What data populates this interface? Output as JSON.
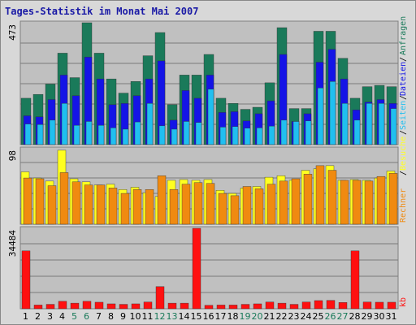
{
  "title": "Tages-Statistik im Monat Mai 2007",
  "colors": {
    "besuche": "#1a7a5a",
    "seiten": "#1414e6",
    "dateien": "#20bff0",
    "rechner": "#f08a10",
    "besuche2": "#ffff20",
    "kb": "#ff1010",
    "weekend_label": "#1a7a5a"
  },
  "chart_data": [
    {
      "type": "bar",
      "name_panel": "top",
      "ymax_label": "473",
      "ymax": 473,
      "side_labels": [
        "Anfragen",
        "Dateien",
        "Seiten",
        "Besuche"
      ],
      "categories": [
        "1",
        "2",
        "3",
        "4",
        "5",
        "6",
        "7",
        "8",
        "9",
        "10",
        "11",
        "12",
        "13",
        "14",
        "15",
        "16",
        "17",
        "18",
        "19",
        "20",
        "21",
        "22",
        "23",
        "24",
        "25",
        "26",
        "27",
        "28",
        "29",
        "30",
        "31"
      ],
      "series": [
        {
          "name": "Anfragen",
          "values": [
            180,
            195,
            235,
            355,
            260,
            473,
            355,
            255,
            200,
            245,
            345,
            435,
            155,
            270,
            270,
            350,
            180,
            160,
            137,
            145,
            240,
            454,
            140,
            140,
            440,
            440,
            335,
            180,
            225,
            230,
            225
          ]
        },
        {
          "name": "Dateien",
          "values": [
            112,
            108,
            175,
            270,
            190,
            340,
            255,
            155,
            160,
            190,
            255,
            325,
            95,
            210,
            180,
            270,
            125,
            128,
            92,
            120,
            170,
            350,
            90,
            120,
            320,
            370,
            255,
            135,
            165,
            175,
            160
          ]
        },
        {
          "name": "Seiten",
          "values": [
            80,
            78,
            95,
            160,
            75,
            90,
            75,
            65,
            60,
            88,
            160,
            73,
            60,
            90,
            86,
            215,
            68,
            70,
            64,
            65,
            72,
            95,
            90,
            92,
            220,
            245,
            160,
            95,
            160,
            160,
            140
          ]
        }
      ]
    },
    {
      "type": "bar",
      "name_panel": "middle",
      "ymax_label": "98",
      "ymax": 98,
      "side_labels": [
        "Rechner",
        "Besuche"
      ],
      "series": [
        {
          "name": "Besuche",
          "values": [
            68,
            60,
            56,
            96,
            59,
            55,
            51,
            52,
            45,
            48,
            41,
            36,
            57,
            58,
            57,
            58,
            44,
            40,
            47,
            49,
            61,
            63,
            57,
            70,
            72,
            76,
            57,
            58,
            57,
            60,
            69
          ]
        },
        {
          "name": "Rechner",
          "values": [
            60,
            59,
            50,
            67,
            55,
            51,
            51,
            47,
            40,
            45,
            45,
            63,
            45,
            52,
            54,
            53,
            40,
            37,
            49,
            46,
            52,
            56,
            59,
            65,
            76,
            70,
            57,
            57,
            56,
            62,
            66
          ]
        }
      ]
    },
    {
      "type": "bar",
      "name_panel": "bottom",
      "ymax_label": "34484",
      "ymax": 34484,
      "side_labels": [
        "kb"
      ],
      "series": [
        {
          "name": "kb",
          "values": [
            24800,
            1600,
            1900,
            3200,
            2400,
            3200,
            2800,
            2100,
            1900,
            2100,
            2900,
            9500,
            2400,
            2400,
            34484,
            1500,
            1600,
            1600,
            1900,
            2100,
            2900,
            2400,
            1900,
            2900,
            3500,
            3600,
            2700,
            24800,
            2900,
            2800,
            2800
          ]
        }
      ]
    }
  ],
  "x_labels": [
    {
      "t": "1",
      "weekend": false
    },
    {
      "t": "2",
      "weekend": false
    },
    {
      "t": "3",
      "weekend": false
    },
    {
      "t": "4",
      "weekend": false
    },
    {
      "t": "5",
      "weekend": true
    },
    {
      "t": "6",
      "weekend": true
    },
    {
      "t": "7",
      "weekend": false
    },
    {
      "t": "8",
      "weekend": false
    },
    {
      "t": "9",
      "weekend": false
    },
    {
      "t": "10",
      "weekend": false
    },
    {
      "t": "11",
      "weekend": false
    },
    {
      "t": "12",
      "weekend": true
    },
    {
      "t": "13",
      "weekend": true
    },
    {
      "t": "14",
      "weekend": false
    },
    {
      "t": "15",
      "weekend": false
    },
    {
      "t": "16",
      "weekend": false
    },
    {
      "t": "17",
      "weekend": false
    },
    {
      "t": "18",
      "weekend": false
    },
    {
      "t": "19",
      "weekend": true
    },
    {
      "t": "20",
      "weekend": true
    },
    {
      "t": "21",
      "weekend": false
    },
    {
      "t": "22",
      "weekend": false
    },
    {
      "t": "23",
      "weekend": false
    },
    {
      "t": "24",
      "weekend": false
    },
    {
      "t": "25",
      "weekend": false
    },
    {
      "t": "26",
      "weekend": true
    },
    {
      "t": "27",
      "weekend": true
    },
    {
      "t": "28",
      "weekend": false
    },
    {
      "t": "29",
      "weekend": false
    },
    {
      "t": "30",
      "weekend": false
    },
    {
      "t": "31",
      "weekend": false
    }
  ]
}
